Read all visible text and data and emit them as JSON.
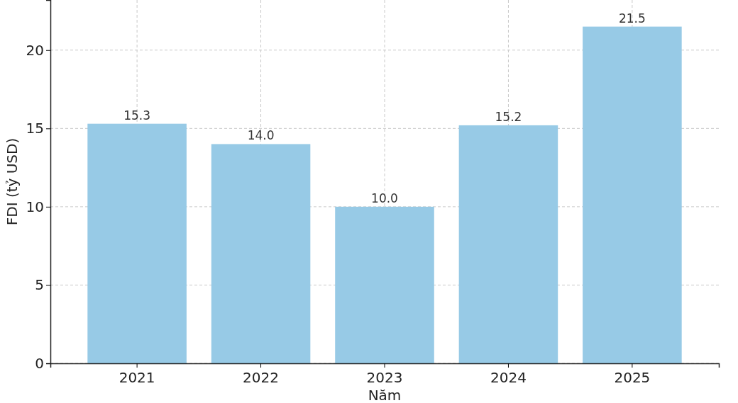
{
  "chart_data": {
    "type": "bar",
    "xlabel": "Năm",
    "ylabel": "FDI (tỷ USD)",
    "categories": [
      "2021",
      "2022",
      "2023",
      "2024",
      "2025"
    ],
    "values": [
      15.3,
      14.0,
      10.0,
      15.2,
      21.5
    ],
    "value_labels": [
      "15.3",
      "14.0",
      "10.0",
      "15.2",
      "21.5"
    ],
    "color": "#97cae6",
    "ylim": [
      0,
      23.2
    ],
    "yticks": [
      0,
      5,
      10,
      15,
      20
    ],
    "grid": true
  }
}
